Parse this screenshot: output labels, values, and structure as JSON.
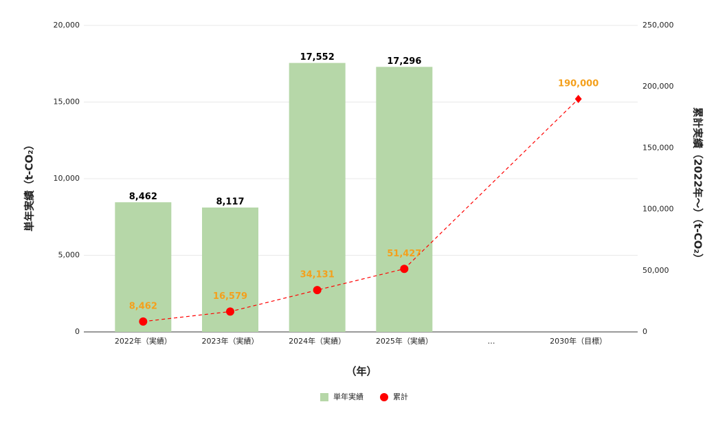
{
  "chart_data": {
    "type": "bar-line",
    "categories": [
      "2022年（実績）",
      "2023年（実績）",
      "2024年（実績）",
      "2025年（実績）",
      "…",
      "2030年（目標）"
    ],
    "series": [
      {
        "name": "単年実績",
        "type": "bar",
        "color": "#b6d7a8",
        "label_color": "#000000",
        "values": [
          8462,
          8117,
          17552,
          17296,
          null,
          null
        ],
        "value_labels": [
          "8,462",
          "8,117",
          "17,552",
          "17,296",
          null,
          null
        ]
      },
      {
        "name": "累計",
        "type": "line",
        "axis": "y2",
        "color": "#ff0000",
        "dashed": true,
        "label_color": "#f4a01c",
        "values": [
          8462,
          16579,
          34131,
          51427,
          null,
          190000
        ],
        "value_labels": [
          "8,462",
          "16,579",
          "34,131",
          "51,427",
          null,
          "190,000"
        ]
      }
    ],
    "x_label": "（年）",
    "y_label": "単年実績（t-CO₂）",
    "y2_label": "累計実績（2022年〜）（t-CO₂）",
    "ylim": [
      0,
      20000
    ],
    "yticks": [
      0,
      {
        "value": 5000,
        "label": "5,000"
      },
      {
        "value": 10000,
        "label": "10,000"
      },
      {
        "value": 15000,
        "label": "15,000"
      },
      {
        "value": 20000,
        "label": "20,000"
      }
    ],
    "y2lim": [
      0,
      250000
    ],
    "y2ticks": [
      0,
      {
        "value": 50000,
        "label": "50,000"
      },
      {
        "value": 100000,
        "label": "100,000"
      },
      {
        "value": 150000,
        "label": "150,000"
      },
      {
        "value": 200000,
        "label": "200,000"
      },
      {
        "value": 250000,
        "label": "250,000"
      }
    ],
    "grid": true,
    "legend": "bottom"
  }
}
